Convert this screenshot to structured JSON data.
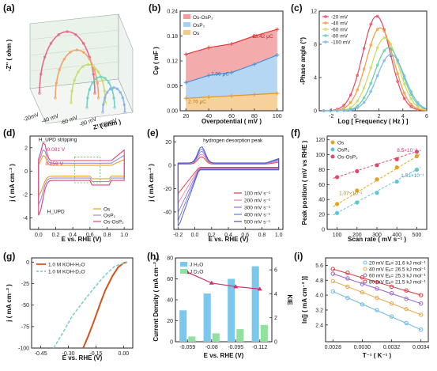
{
  "chart_data": [
    {
      "panel": "(a)",
      "type": "line",
      "ylabel": "-Z'' ( ohm )",
      "xlabel": "Z' ( ohm )",
      "depth_ticks": [
        "-20mV",
        "-40 mV",
        "-60 mV",
        "-80 mV",
        "-100 mV"
      ],
      "series": [
        {
          "name": "-20mV",
          "color": "#e8688c",
          "radius": 1.0
        },
        {
          "name": "-40 mV",
          "color": "#f2a36b",
          "radius": 0.78
        },
        {
          "name": "-60 mV",
          "color": "#c8dc6e",
          "radius": 0.62
        },
        {
          "name": "-80 mV",
          "color": "#6fd4c4",
          "radius": 0.5
        },
        {
          "name": "-100 mV",
          "color": "#8ab4ea",
          "radius": 0.4
        }
      ]
    },
    {
      "panel": "(b)",
      "type": "line",
      "xlabel": "Overpotential ( mV )",
      "ylabel": "Cφ ( mF )",
      "xlim": [
        15,
        105
      ],
      "ylim": [
        0,
        0.24
      ],
      "xticks": [
        "20",
        "40",
        "60",
        "80",
        "100"
      ],
      "yticks": [
        "0.00",
        "0.06",
        "0.12",
        "0.18",
        "0.24"
      ],
      "legend": [
        "Os-OsP₂",
        "OsP₂",
        "Os"
      ],
      "series": [
        {
          "name": "Os-OsP₂",
          "color": "#e23b3b",
          "fill": "#f29c9c",
          "x": [
            20,
            40,
            60,
            80,
            100
          ],
          "values": [
            0.136,
            0.152,
            0.161,
            0.18,
            0.196
          ]
        },
        {
          "name": "OsP₂",
          "color": "#4a8fd8",
          "fill": "#a9d0f2",
          "x": [
            20,
            40,
            60,
            80,
            100
          ],
          "values": [
            0.068,
            0.085,
            0.092,
            0.112,
            0.134
          ]
        },
        {
          "name": "Os",
          "color": "#e3941f",
          "fill": "#f5c98a",
          "x": [
            20,
            40,
            60,
            80,
            100
          ],
          "values": [
            0.03,
            0.033,
            0.036,
            0.039,
            0.042
          ]
        }
      ],
      "annotations": [
        "13.42 μC",
        "7.96 μC",
        "2.76 μC"
      ]
    },
    {
      "panel": "(c)",
      "type": "scatter",
      "xlabel": "Log [ Frequency ( Hz ) ]",
      "ylabel": "-Phase angle (°)",
      "xlim": [
        -3,
        6
      ],
      "ylim": [
        0,
        12
      ],
      "xticks": [
        "-2",
        "0",
        "2",
        "4",
        "6"
      ],
      "yticks": [
        "0",
        "4",
        "8",
        "12"
      ],
      "legend": [
        "-20 mV",
        "-40 mV",
        "-60 mV",
        "-80 mV",
        "-100 mV"
      ],
      "series": [
        {
          "name": "-20 mV",
          "color": "#e84560",
          "peak_x": 1.8,
          "peak_y": 11.4
        },
        {
          "name": "-40 mV",
          "color": "#f39a3e",
          "peak_x": 2.1,
          "peak_y": 10.0
        },
        {
          "name": "-60 mV",
          "color": "#cfd85a",
          "peak_x": 2.5,
          "peak_y": 8.8
        },
        {
          "name": "-80 mV",
          "color": "#5fcfa2",
          "peak_x": 2.8,
          "peak_y": 7.6
        },
        {
          "name": "-100 mV",
          "color": "#7ab6ea",
          "peak_x": 3.0,
          "peak_y": 6.8
        }
      ]
    },
    {
      "panel": "(d)",
      "type": "line",
      "xlabel": "E vs. RHE (V)",
      "ylabel": "j ( mA cm⁻² )",
      "xlim": [
        -0.1,
        1.1
      ],
      "ylim": [
        -5,
        3
      ],
      "xticks": [
        "0.0",
        "0.2",
        "0.4",
        "0.6",
        "0.8",
        "1.0"
      ],
      "yticks": [
        "-4",
        "-2",
        "0",
        "2"
      ],
      "legend": [
        "Os",
        "OsP₂",
        "Os-OsP₂"
      ],
      "annotations": [
        "H_UPD stripping",
        "0.081 V",
        "0.059 V",
        "H_UPD"
      ],
      "series": [
        {
          "name": "Os",
          "color": "#e3a21f"
        },
        {
          "name": "OsP₂",
          "color": "#9b8fd8"
        },
        {
          "name": "Os-OsP₂",
          "color": "#e0407a"
        }
      ]
    },
    {
      "panel": "(e)",
      "type": "line",
      "xlabel": "E vs. RHE (V)",
      "ylabel": "j ( mA cm⁻² )",
      "xlim": [
        -0.25,
        1.05
      ],
      "ylim": [
        -55,
        25
      ],
      "xticks": [
        "-0.2",
        "0.0",
        "0.2",
        "0.4",
        "0.6",
        "0.8",
        "1.0"
      ],
      "yticks": [
        "-40",
        "-20",
        "0",
        "20"
      ],
      "annotations": [
        "hydrogen desorption peak"
      ],
      "legend": [
        "100 mV s⁻¹",
        "200 mV s⁻¹",
        "300 mV s⁻¹",
        "400 mV s⁻¹",
        "500 mV s⁻¹"
      ],
      "series": [
        {
          "name": "100 mV s⁻¹",
          "color": "#e23b3b",
          "scale": 0.45
        },
        {
          "name": "200 mV s⁻¹",
          "color": "#e97fb0",
          "scale": 0.6
        },
        {
          "name": "300 mV s⁻¹",
          "color": "#9c6fd6",
          "scale": 0.75
        },
        {
          "name": "400 mV s⁻¹",
          "color": "#5b7fdc",
          "scale": 0.88
        },
        {
          "name": "500 mV s⁻¹",
          "color": "#4a4fc8",
          "scale": 1.0
        }
      ]
    },
    {
      "panel": "(f)",
      "type": "scatter",
      "xlabel": "Scan rate ( mV s⁻¹ )",
      "ylabel": "Peak position ( mV vs RHE )",
      "xlim": [
        50,
        550
      ],
      "ylim": [
        0,
        125
      ],
      "xticks": [
        "100",
        "200",
        "300",
        "400",
        "500"
      ],
      "yticks": [
        "0",
        "20",
        "40",
        "60",
        "80",
        "100",
        "120"
      ],
      "legend": [
        "Os",
        "OsP₂",
        "Os-OsP₂"
      ],
      "annotations": [
        "8.5×10⁻²",
        "1.07×10⁻¹",
        "1.51×10⁻¹"
      ],
      "series": [
        {
          "name": "Os",
          "color": "#e3a21f",
          "x": [
            100,
            200,
            300,
            400,
            500
          ],
          "values": [
            34,
            52,
            67,
            83,
            98
          ]
        },
        {
          "name": "OsP₂",
          "color": "#5ec4d8",
          "x": [
            100,
            200,
            300,
            400,
            500
          ],
          "values": [
            22,
            36,
            49,
            64,
            80
          ]
        },
        {
          "name": "Os-OsP₂",
          "color": "#e04a6a",
          "x": [
            100,
            200,
            300,
            400,
            500
          ],
          "values": [
            70,
            78,
            86,
            94,
            104
          ]
        }
      ]
    },
    {
      "panel": "(g)",
      "type": "line",
      "xlabel": "E vs. RHE (V)",
      "ylabel": "j ( mA cm⁻² )",
      "xlim": [
        -0.5,
        0.05
      ],
      "ylim": [
        -100,
        5
      ],
      "xticks": [
        "-0.45",
        "-0.30",
        "-0.15",
        "0.00"
      ],
      "yticks": [
        "-100",
        "-75",
        "-50",
        "-25",
        "0"
      ],
      "legend": [
        "1.0 M KOH-H₂O",
        "1.0 M KOH-D₂O"
      ],
      "series": [
        {
          "name": "1.0 M KOH-H₂O",
          "color": "#d2541c",
          "x": [
            -0.22,
            -0.19,
            -0.16,
            -0.13,
            -0.1,
            -0.06,
            -0.03,
            0.0,
            0.02
          ],
          "values": [
            -100,
            -85,
            -68,
            -50,
            -33,
            -16,
            -6,
            -1,
            0
          ]
        },
        {
          "name": "1.0 M KOH-D₂O",
          "color": "#7fd0c8",
          "x": [
            -0.38,
            -0.33,
            -0.28,
            -0.22,
            -0.16,
            -0.1,
            -0.05,
            0.0,
            0.02
          ],
          "values": [
            -100,
            -82,
            -63,
            -46,
            -30,
            -15,
            -5,
            -1,
            0
          ]
        }
      ]
    },
    {
      "panel": "(h)",
      "type": "bar",
      "xlabel": "E vs. RHE (V)",
      "ylabel": "Current Density ( mA cm⁻² )",
      "ylabel_right": "KIE",
      "categories": [
        "-0.059",
        "-0.08",
        "-0.095",
        "-0.112"
      ],
      "ylim": [
        0,
        80
      ],
      "yticks": [
        "0",
        "20",
        "40",
        "60",
        "80"
      ],
      "y2lim": [
        0,
        7
      ],
      "y2ticks": [
        "0",
        "2",
        "4",
        "6"
      ],
      "legend": [
        "J H₂O",
        "J D₂O"
      ],
      "series": [
        {
          "name": "J H₂O",
          "color": "#7cc8ec",
          "values": [
            30,
            46,
            60,
            72
          ]
        },
        {
          "name": "J D₂O",
          "color": "#92e0a0",
          "values": [
            5,
            8,
            12,
            16
          ]
        },
        {
          "name": "KIE",
          "color": "#d0306a",
          "values": [
            5.8,
            4.9,
            4.6,
            4.4
          ]
        }
      ]
    },
    {
      "panel": "(i)",
      "type": "scatter",
      "xlabel": "T⁻¹ ( K⁻¹ )",
      "ylabel": "ln[j ( mA cm⁻² )]",
      "xlim": [
        0.00275,
        0.00345
      ],
      "ylim": [
        1.5,
        6.0
      ],
      "xticks": [
        "0.0028",
        "0.0030",
        "0.0032",
        "0.0034"
      ],
      "yticks": [
        "2.4",
        "3.2",
        "4.0",
        "4.8",
        "5.6"
      ],
      "legend": [
        "20 mV Eₐ= 31.6 kJ mol⁻¹",
        "40 mV Eₐ= 26.5 kJ mol⁻¹",
        "60 mV Eₐ= 25.3 kJ mol⁻¹",
        "80 mV Eₐ= 21.5 kJ mol⁻¹"
      ],
      "series": [
        {
          "name": "20 mV",
          "color": "#6ab8e6",
          "x": [
            0.0028,
            0.0029,
            0.003,
            0.0031,
            0.0032,
            0.0033,
            0.0034
          ],
          "values": [
            4.2,
            3.85,
            3.5,
            3.2,
            2.85,
            2.5,
            2.15
          ]
        },
        {
          "name": "40 mV",
          "color": "#e8a64a",
          "x": [
            0.0028,
            0.0029,
            0.003,
            0.0031,
            0.0032,
            0.0033,
            0.0034
          ],
          "values": [
            4.75,
            4.45,
            4.15,
            3.85,
            3.55,
            3.25,
            2.95
          ]
        },
        {
          "name": "60 mV",
          "color": "#9c66c8",
          "x": [
            0.0028,
            0.0029,
            0.003,
            0.0031,
            0.0032,
            0.0033,
            0.0034
          ],
          "values": [
            5.15,
            4.9,
            4.6,
            4.35,
            4.1,
            3.8,
            3.55
          ]
        },
        {
          "name": "80 mV",
          "color": "#d83a3a",
          "x": [
            0.0028,
            0.0029,
            0.003,
            0.0031,
            0.0032,
            0.0033,
            0.0034
          ],
          "values": [
            5.4,
            5.2,
            4.95,
            4.7,
            4.45,
            4.25,
            4.0
          ]
        }
      ]
    }
  ]
}
